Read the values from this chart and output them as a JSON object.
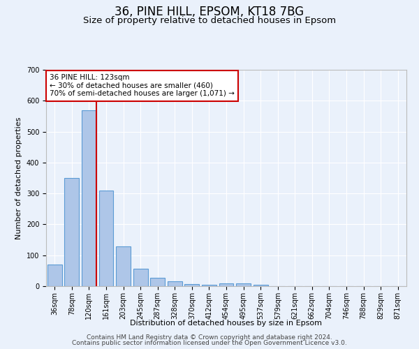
{
  "title1": "36, PINE HILL, EPSOM, KT18 7BG",
  "title2": "Size of property relative to detached houses in Epsom",
  "xlabel": "Distribution of detached houses by size in Epsom",
  "ylabel": "Number of detached properties",
  "categories": [
    "36sqm",
    "78sqm",
    "120sqm",
    "161sqm",
    "203sqm",
    "245sqm",
    "287sqm",
    "328sqm",
    "370sqm",
    "412sqm",
    "454sqm",
    "495sqm",
    "537sqm",
    "579sqm",
    "621sqm",
    "662sqm",
    "704sqm",
    "746sqm",
    "788sqm",
    "829sqm",
    "871sqm"
  ],
  "values": [
    70,
    350,
    570,
    310,
    128,
    57,
    27,
    15,
    7,
    5,
    10,
    10,
    5,
    0,
    0,
    0,
    0,
    0,
    0,
    0,
    0
  ],
  "bar_color": "#aec6e8",
  "bar_edge_color": "#5b9bd5",
  "annotation_text": "36 PINE HILL: 123sqm\n← 30% of detached houses are smaller (460)\n70% of semi-detached houses are larger (1,071) →",
  "annotation_box_color": "#ffffff",
  "annotation_border_color": "#cc0000",
  "red_line_color": "#cc0000",
  "ylim": [
    0,
    700
  ],
  "yticks": [
    0,
    100,
    200,
    300,
    400,
    500,
    600,
    700
  ],
  "footer1": "Contains HM Land Registry data © Crown copyright and database right 2024.",
  "footer2": "Contains public sector information licensed under the Open Government Licence v3.0.",
  "bg_color": "#eaf1fb",
  "plot_bg_color": "#eaf1fb",
  "grid_color": "#ffffff",
  "title1_fontsize": 12,
  "title2_fontsize": 9.5,
  "axis_label_fontsize": 8,
  "tick_fontsize": 7,
  "annot_fontsize": 7.5,
  "footer_fontsize": 6.5
}
